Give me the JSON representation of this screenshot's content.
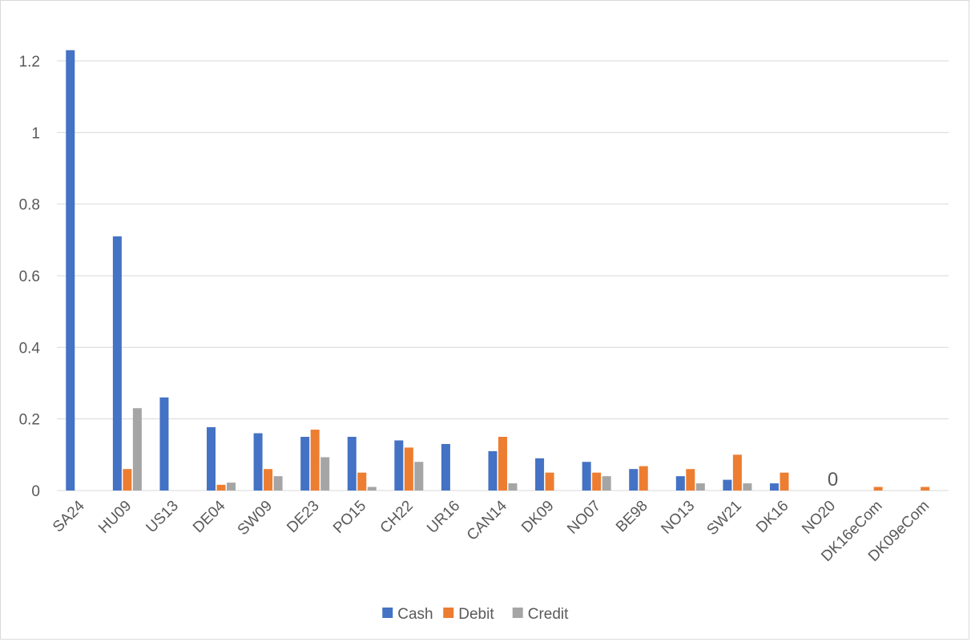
{
  "chart_data": {
    "type": "bar",
    "categories": [
      "SA24",
      "HU09",
      "US13",
      "DE04",
      "SW09",
      "DE23",
      "PO15",
      "CH22",
      "UR16",
      "CAN14",
      "DK09",
      "NO07",
      "BE98",
      "NO13",
      "SW21",
      "DK16",
      "NO20",
      "DK16eCom",
      "DK09eCom"
    ],
    "series": [
      {
        "name": "Cash",
        "color": "#4472C4",
        "values": [
          1.23,
          0.71,
          0.26,
          0.177,
          0.16,
          0.15,
          0.15,
          0.14,
          0.13,
          0.11,
          0.09,
          0.08,
          0.06,
          0.04,
          0.03,
          0.02,
          null,
          null,
          null
        ]
      },
      {
        "name": "Debit",
        "color": "#ED7D31",
        "values": [
          null,
          0.06,
          null,
          0.016,
          0.06,
          0.17,
          0.05,
          0.12,
          null,
          0.15,
          0.05,
          0.05,
          0.068,
          0.06,
          0.1,
          0.05,
          null,
          0.01,
          0.01
        ]
      },
      {
        "name": "Credit",
        "color": "#A5A5A5",
        "values": [
          null,
          0.23,
          null,
          0.022,
          0.04,
          0.093,
          0.01,
          0.08,
          null,
          0.02,
          null,
          0.04,
          null,
          0.02,
          0.02,
          null,
          null,
          null,
          null
        ]
      }
    ],
    "annotations": [
      {
        "category": "NO20",
        "text": "0"
      }
    ],
    "yticks": [
      "0",
      "0.2",
      "0.4",
      "0.6",
      "0.8",
      "1",
      "1.2"
    ],
    "ylim": [
      0,
      1.4
    ],
    "title": "",
    "xlabel": "",
    "ylabel": "",
    "grid": true,
    "legend_position": "bottom"
  }
}
